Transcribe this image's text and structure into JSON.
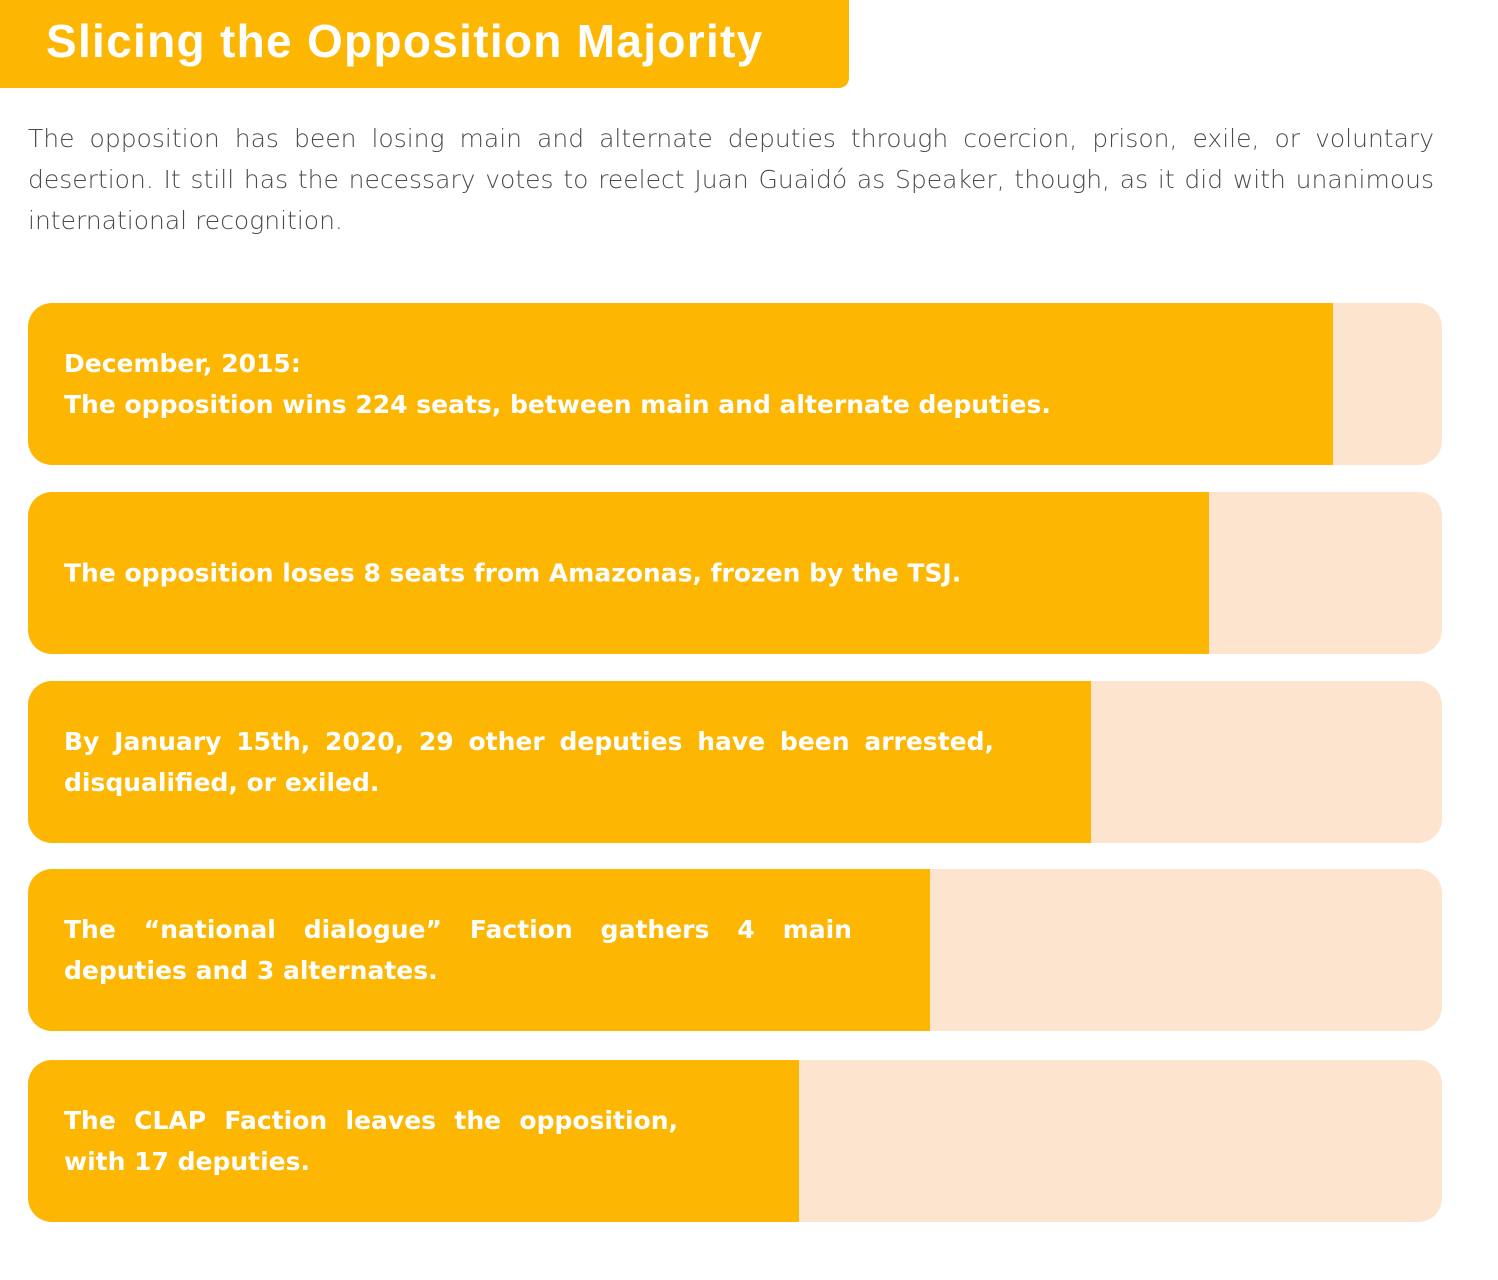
{
  "title": "Slicing the Opposition Majority",
  "intro": "The opposition has been losing main and alternate deputies through coercion, prison, exile, or voluntary desertion. It still has the necessary votes to reelect Juan Guaidó as Speaker, though, as it did with unanimous international recognition.",
  "colors": {
    "fill": "#FDB702",
    "track": "#FDE4CF",
    "label": "#FFFFFF",
    "intro_text": "#4A4A4A"
  },
  "chart_data": {
    "type": "bar",
    "orientation": "horizontal",
    "max_value": 1,
    "bars": [
      {
        "fill_fraction": 0.923,
        "label_lines": [
          "December, 2015:",
          "The opposition wins 224 seats, between main and alternate deputies."
        ]
      },
      {
        "fill_fraction": 0.835,
        "label_lines": [
          "The opposition loses 8 seats from Amazonas, frozen by the TSJ."
        ]
      },
      {
        "fill_fraction": 0.752,
        "label_lines": [
          "By January 15th, 2020, 29 other deputies have been arrested,",
          "disqualified, or exiled."
        ]
      },
      {
        "fill_fraction": 0.638,
        "label_lines": [
          "The “national dialogue” Faction gathers 4 main",
          "deputies and 3 alternates."
        ]
      },
      {
        "fill_fraction": 0.545,
        "label_lines": [
          "The CLAP Faction leaves the opposition,",
          "with 17 deputies."
        ]
      }
    ]
  }
}
